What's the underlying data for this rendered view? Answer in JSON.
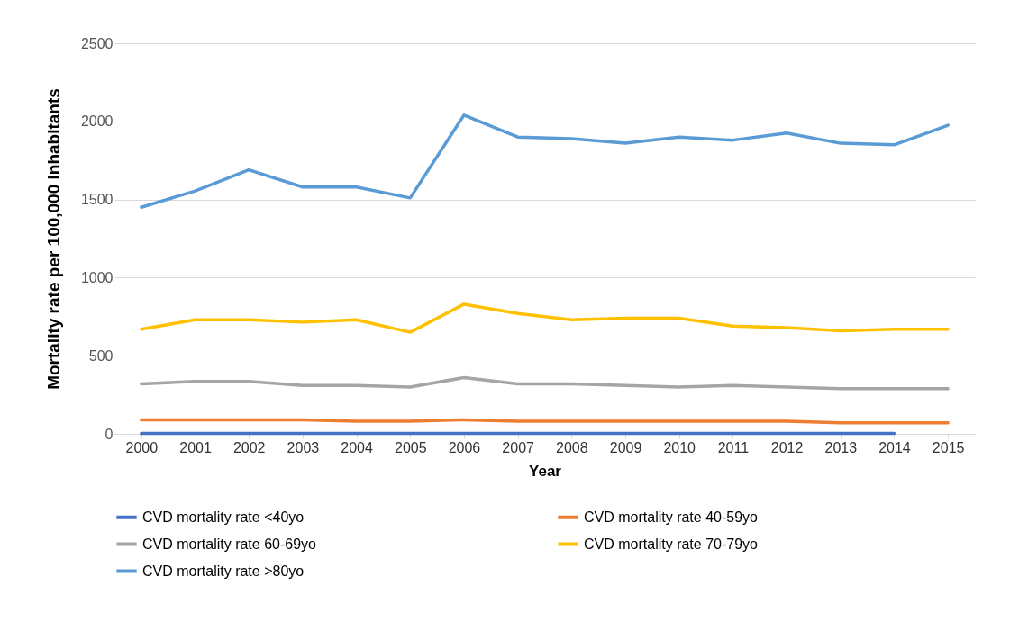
{
  "chart_data": {
    "type": "line",
    "xlabel": "Year",
    "ylabel": "Mortality rate per 100,000 inhabitants",
    "categories": [
      "2000",
      "2001",
      "2002",
      "2003",
      "2004",
      "2005",
      "2006",
      "2007",
      "2008",
      "2009",
      "2010",
      "2011",
      "2012",
      "2013",
      "2014",
      "2015"
    ],
    "series": [
      {
        "name": "CVD mortality rate <40yo",
        "color": "#4472c4",
        "values": [
          3,
          3,
          3,
          3,
          3,
          3,
          3,
          3,
          3,
          3,
          3,
          3,
          3,
          3,
          3,
          null
        ]
      },
      {
        "name": "CVD mortality rate 40-59yo",
        "color": "#ed7d31",
        "values": [
          90,
          90,
          90,
          90,
          80,
          80,
          90,
          80,
          80,
          80,
          80,
          80,
          80,
          70,
          70,
          70
        ]
      },
      {
        "name": "CVD mortality rate 60-69yo",
        "color": "#a5a5a5",
        "values": [
          320,
          335,
          335,
          310,
          310,
          300,
          360,
          320,
          320,
          310,
          300,
          310,
          300,
          290,
          290,
          290
        ]
      },
      {
        "name": "CVD mortality rate 70-79yo",
        "color": "#ffc000",
        "values": [
          670,
          730,
          730,
          715,
          730,
          650,
          830,
          770,
          730,
          740,
          740,
          690,
          680,
          660,
          670,
          670
        ]
      },
      {
        "name": "CVD mortality rate >80yo",
        "color": "#5b9bd5",
        "values": [
          1450,
          1555,
          1690,
          1580,
          1580,
          1510,
          2040,
          1900,
          1890,
          1860,
          1900,
          1880,
          1925,
          1860,
          1850,
          1975
        ]
      }
    ],
    "ylim": [
      0,
      2500
    ],
    "yticks": [
      0,
      500,
      1000,
      1500,
      2000,
      2500
    ],
    "grid": "y",
    "legend": "bottom",
    "marker": "none",
    "line_style": "solid"
  }
}
